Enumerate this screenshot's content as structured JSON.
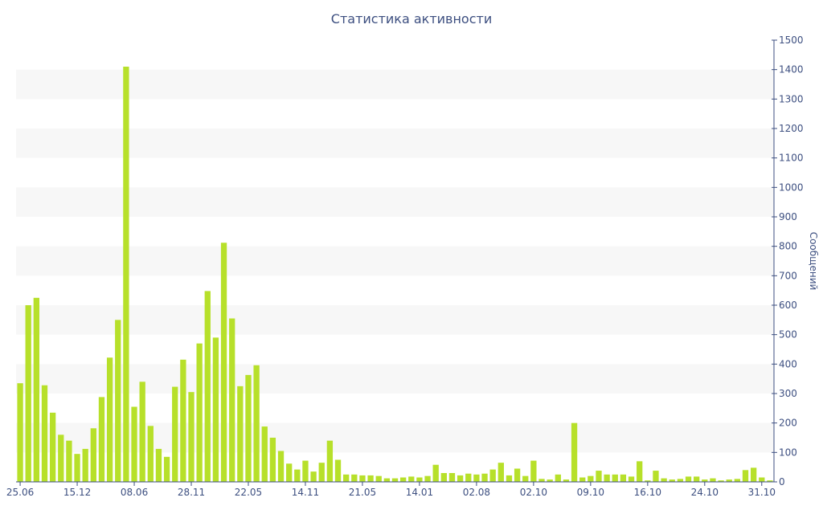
{
  "chart_data": {
    "type": "bar",
    "title": "Статистика активности",
    "xlabel": "",
    "ylabel": "Сообщений",
    "ylim": [
      0,
      1500
    ],
    "y_ticks": [
      0,
      100,
      200,
      300,
      400,
      500,
      600,
      700,
      800,
      900,
      1000,
      1100,
      1200,
      1300,
      1400,
      1500
    ],
    "y_axis_side": "right",
    "grid": "alternating horizontal bands",
    "x_tick_labels": [
      "25.06",
      "15.12",
      "08.06",
      "28.11",
      "22.05",
      "14.11",
      "21.05",
      "14.01",
      "02.08",
      "02.10",
      "09.10",
      "16.10",
      "24.10",
      "31.10"
    ],
    "x_tick_positions": [
      0,
      7,
      14,
      21,
      28,
      35,
      42,
      49,
      56,
      63,
      70,
      77,
      84,
      91
    ],
    "values": [
      335,
      600,
      625,
      328,
      235,
      160,
      140,
      95,
      112,
      182,
      288,
      422,
      550,
      1410,
      255,
      340,
      190,
      112,
      85,
      323,
      415,
      305,
      470,
      648,
      490,
      812,
      555,
      325,
      363,
      396,
      188,
      150,
      105,
      62,
      42,
      72,
      35,
      65,
      140,
      75,
      25,
      25,
      22,
      22,
      20,
      12,
      12,
      15,
      18,
      15,
      20,
      58,
      30,
      30,
      22,
      28,
      25,
      28,
      42,
      65,
      22,
      45,
      20,
      72,
      10,
      8,
      25,
      8,
      200,
      15,
      20,
      38,
      25,
      25,
      25,
      18,
      70,
      5,
      38,
      12,
      8,
      10,
      18,
      18,
      8,
      12,
      5,
      8,
      10,
      40,
      48,
      15,
      5
    ],
    "colors": {
      "bar": "#b7e02a",
      "band": "#f7f7f7",
      "axis": "#3d4f80",
      "text": "#3d4f80"
    }
  }
}
